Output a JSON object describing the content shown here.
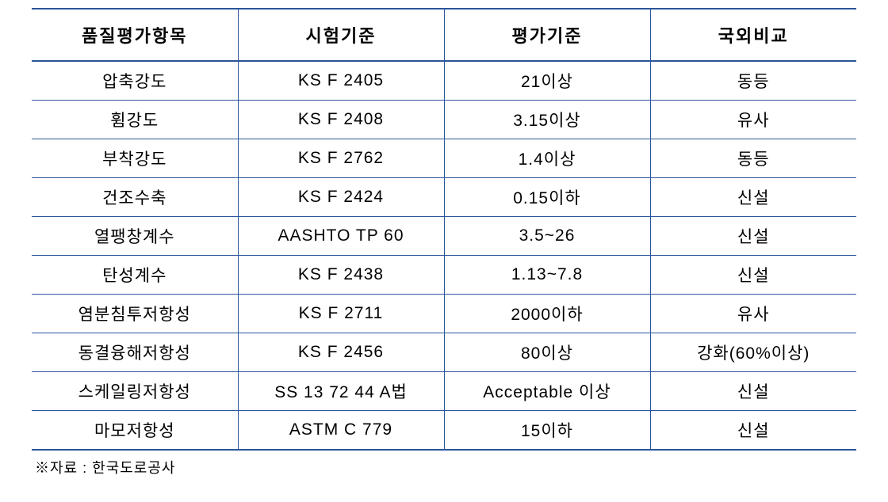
{
  "table": {
    "border_color": "#2a5599",
    "thick_border_width": 2,
    "thin_border_width": 1,
    "background_color": "#ffffff",
    "text_color": "#000000",
    "header_fontsize": 22,
    "body_fontsize": 21,
    "footnote_fontsize": 18,
    "column_widths": [
      0.25,
      0.25,
      0.25,
      0.25
    ],
    "columns": [
      "품질평가항목",
      "시험기준",
      "평가기준",
      "국외비교"
    ],
    "rows": [
      {
        "c0": "압축강도",
        "c1": "KS F 2405",
        "c2": "21이상",
        "c3": "동등"
      },
      {
        "c0": "휨강도",
        "c1": "KS F 2408",
        "c2": "3.15이상",
        "c3": "유사"
      },
      {
        "c0": "부착강도",
        "c1": "KS F 2762",
        "c2": "1.4이상",
        "c3": "동등"
      },
      {
        "c0": "건조수축",
        "c1": "KS F 2424",
        "c2": "0.15이하",
        "c3": "신설"
      },
      {
        "c0": "열팽창계수",
        "c1": "AASHTO TP 60",
        "c2": "3.5~26",
        "c3": "신설"
      },
      {
        "c0": "탄성계수",
        "c1": "KS F 2438",
        "c2": "1.13~7.8",
        "c3": "신설"
      },
      {
        "c0": "염분침투저항성",
        "c1": "KS F 2711",
        "c2": "2000이하",
        "c3": "유사"
      },
      {
        "c0": "동결융해저항성",
        "c1": "KS F 2456",
        "c2": "80이상",
        "c3": "강화(60%이상)"
      },
      {
        "c0": "스케일링저항성",
        "c1": "SS 13 72 44 A법",
        "c2": "Acceptable 이상",
        "c3": "신설"
      },
      {
        "c0": "마모저항성",
        "c1": "ASTM C 779",
        "c2": "15이하",
        "c3": "신설"
      }
    ]
  },
  "footnote": "※자료 : 한국도로공사"
}
